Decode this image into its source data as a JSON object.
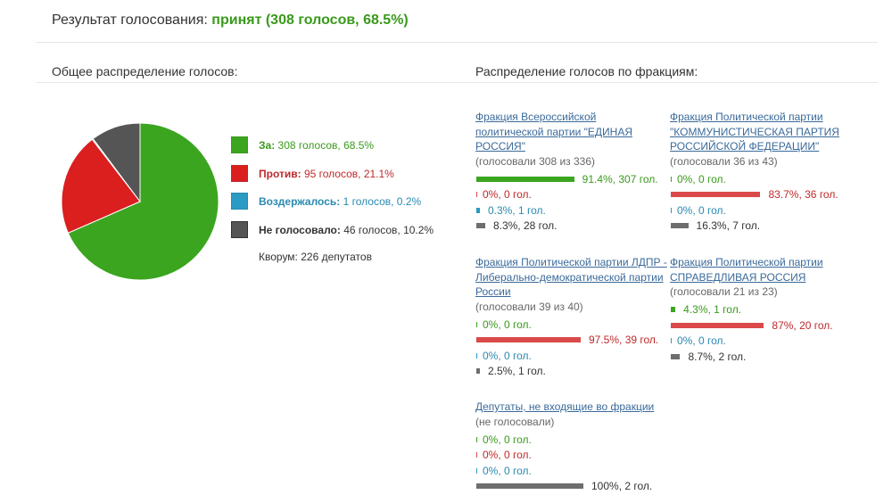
{
  "header": {
    "prefix": "Результат голосования:",
    "result": "принят (308 голосов, 68.5%)"
  },
  "overall_title": "Общее распределение голосов:",
  "factions_title": "Распределение голосов по фракциям:",
  "legend": [
    {
      "label": "За:",
      "text": "308 голосов, 68.5%",
      "color": "#3a9a1c"
    },
    {
      "label": "Против:",
      "text": "95 голосов, 21.1%",
      "color": "#c0282a"
    },
    {
      "label": "Воздержалось:",
      "text": "1 голосов, 0.2%",
      "color": "#2a8ab0"
    },
    {
      "label": "Не голосовало:",
      "text": "46 голосов, 10.2%",
      "color": "#333333"
    }
  ],
  "quorum": "Кворум: 226 депутатов",
  "colors": {
    "for": "#3ba520",
    "against": "#db1e1e",
    "abstain": "#2a9bc2",
    "absent": "#555555"
  },
  "chart_data": [
    {
      "type": "pie",
      "title": "Общее распределение голосов:",
      "categories": [
        "За",
        "Против",
        "Воздержалось",
        "Не голосовало"
      ],
      "values": [
        308,
        95,
        1,
        46
      ],
      "percent": [
        68.5,
        21.1,
        0.2,
        10.2
      ]
    },
    {
      "type": "bar",
      "title": "Распределение голосов по фракциям:",
      "categories": [
        "За",
        "Против",
        "Воздержалось",
        "Не голосовало"
      ],
      "factions": [
        {
          "name": "Фракция Всероссийской политической партии \"ЕДИНАЯ РОССИЯ\"",
          "sub": "(голосовали 308 из 336)",
          "rows": [
            {
              "cat": "for",
              "pct": 91.4,
              "text": "91.4%, 307 гол."
            },
            {
              "cat": "against",
              "pct": 0,
              "text": "0%, 0 гол."
            },
            {
              "cat": "abstain",
              "pct": 0.3,
              "text": "0.3%, 1 гол."
            },
            {
              "cat": "absent",
              "pct": 8.3,
              "text": "8.3%, 28 гол."
            }
          ]
        },
        {
          "name": "Фракция Политической партии \"КОММУНИСТИЧЕСКАЯ ПАРТИЯ РОССИЙСКОЙ ФЕДЕРАЦИИ\"",
          "sub": "(голосовали 36 из 43)",
          "rows": [
            {
              "cat": "for",
              "pct": 0,
              "text": "0%, 0 гол."
            },
            {
              "cat": "against",
              "pct": 83.7,
              "text": "83.7%, 36 гол."
            },
            {
              "cat": "abstain",
              "pct": 0,
              "text": "0%, 0 гол."
            },
            {
              "cat": "absent",
              "pct": 16.3,
              "text": "16.3%, 7 гол."
            }
          ]
        },
        {
          "name": "Фракция Политической партии ЛДПР - Либерально-демократической партии России",
          "sub": "(голосовали 39 из 40)",
          "rows": [
            {
              "cat": "for",
              "pct": 0,
              "text": "0%, 0 гол."
            },
            {
              "cat": "against",
              "pct": 97.5,
              "text": "97.5%, 39 гол."
            },
            {
              "cat": "abstain",
              "pct": 0,
              "text": "0%, 0 гол."
            },
            {
              "cat": "absent",
              "pct": 2.5,
              "text": "2.5%, 1 гол."
            }
          ]
        },
        {
          "name": "Фракция Политической партии СПРАВЕДЛИВАЯ РОССИЯ",
          "sub": "(голосовали 21 из 23)",
          "rows": [
            {
              "cat": "for",
              "pct": 4.3,
              "text": "4.3%, 1 гол."
            },
            {
              "cat": "against",
              "pct": 87,
              "text": "87%, 20 гол."
            },
            {
              "cat": "abstain",
              "pct": 0,
              "text": "0%, 0 гол."
            },
            {
              "cat": "absent",
              "pct": 8.7,
              "text": "8.7%, 2 гол."
            }
          ]
        },
        {
          "name": "Депутаты, не входящие во фракции",
          "sub": "(не голосовали)",
          "rows": [
            {
              "cat": "for",
              "pct": 0,
              "text": "0%, 0 гол."
            },
            {
              "cat": "against",
              "pct": 0,
              "text": "0%, 0 гол."
            },
            {
              "cat": "abstain",
              "pct": 0,
              "text": "0%, 0 гол."
            },
            {
              "cat": "absent",
              "pct": 100,
              "text": "100%, 2 гол."
            }
          ]
        }
      ]
    }
  ]
}
